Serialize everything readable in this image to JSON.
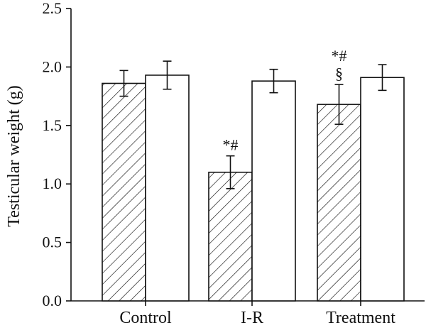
{
  "chart_data": {
    "type": "bar",
    "title": "",
    "xlabel": "",
    "ylabel": "Testicular weight (g)",
    "ylim": [
      0,
      2.5
    ],
    "yticks": [
      "0.0",
      "0.5",
      "1.0",
      "1.5",
      "2.0",
      "2.5"
    ],
    "categories": [
      "Control",
      "I-R",
      "Treatment"
    ],
    "grid": false,
    "legend": "none",
    "series": [
      {
        "pattern": "hatched",
        "values": [
          1.86,
          1.1,
          1.68
        ],
        "errors": [
          0.11,
          0.14,
          0.17
        ]
      },
      {
        "pattern": "open",
        "values": [
          1.93,
          1.88,
          1.91
        ],
        "errors": [
          0.12,
          0.1,
          0.11
        ]
      }
    ],
    "annotations": [
      {
        "category": "I-R",
        "series": 0,
        "lines": [
          "*#"
        ]
      },
      {
        "category": "Treatment",
        "series": 0,
        "lines": [
          "*#",
          "§"
        ]
      }
    ]
  }
}
